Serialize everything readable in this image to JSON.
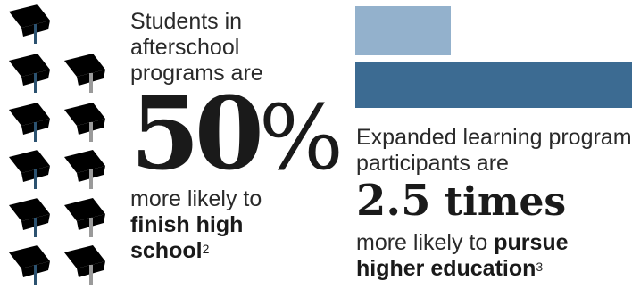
{
  "left_stat": {
    "intro": "Students in afterschool programs are",
    "number": "50",
    "percent": "%",
    "tail_line1": "more likely to",
    "bold_line1": "finish high",
    "bold_line2": "school",
    "footnote": "2"
  },
  "right_stat": {
    "intro": "Expanded learning program participants are",
    "number": "2.5",
    "unit": "times",
    "tail": "more likely to",
    "bold1": "pursue",
    "bold2": "higher education",
    "footnote": "3"
  },
  "icons": {
    "name": "graduation-cap-icon",
    "dark_color": "#3c6b92",
    "light_color": "#b8b8b8",
    "dark_count": 6,
    "light_count": 5
  },
  "bars": {
    "light_color": "#93b1cc",
    "dark_color": "#3c6b92",
    "ratio": 2.5
  }
}
